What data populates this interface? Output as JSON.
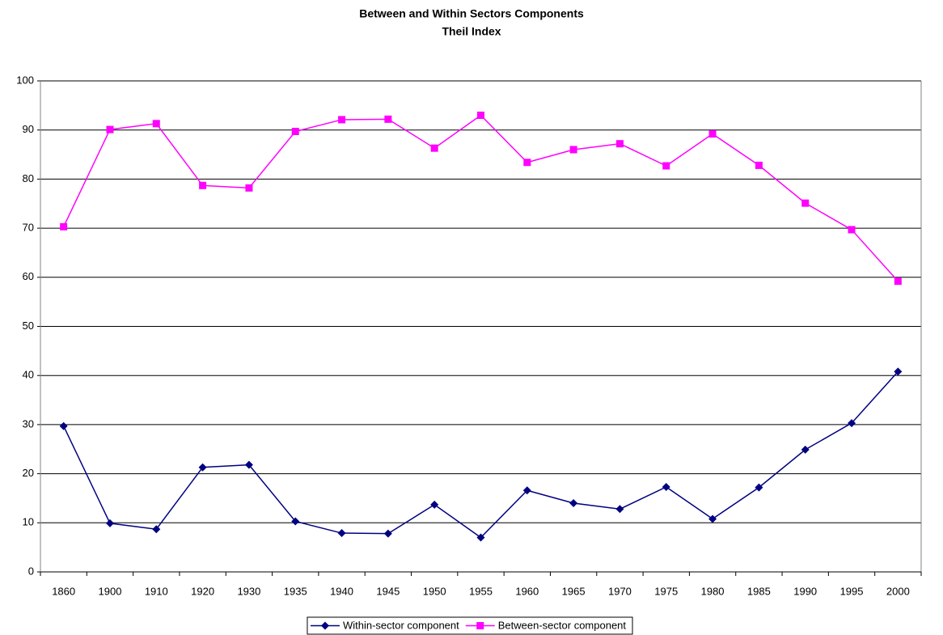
{
  "chart_data": {
    "type": "line",
    "title": "Between and Within Sectors Components",
    "subtitle": "Theil Index",
    "categories": [
      "1860",
      "1900",
      "1910",
      "1920",
      "1930",
      "1935",
      "1940",
      "1945",
      "1950",
      "1955",
      "1960",
      "1965",
      "1970",
      "1975",
      "1980",
      "1985",
      "1990",
      "1995",
      "2000"
    ],
    "series": [
      {
        "name": "Within-sector component",
        "color": "#000080",
        "marker": "diamond",
        "values": [
          29.7,
          9.9,
          8.7,
          21.3,
          21.8,
          10.3,
          7.9,
          7.8,
          13.7,
          7.0,
          16.6,
          14.0,
          12.8,
          17.3,
          10.8,
          17.2,
          24.9,
          30.3,
          40.8
        ]
      },
      {
        "name": "Between-sector component",
        "color": "#ff00ff",
        "marker": "square",
        "values": [
          70.3,
          90.1,
          91.3,
          78.7,
          78.2,
          89.7,
          92.1,
          92.2,
          86.3,
          93.0,
          83.4,
          86.0,
          87.2,
          82.7,
          89.2,
          82.8,
          75.1,
          69.7,
          59.2
        ]
      }
    ],
    "ylim": [
      0,
      100
    ],
    "yticks": [
      0,
      10,
      20,
      30,
      40,
      50,
      60,
      70,
      80,
      90,
      100
    ],
    "grid": true,
    "legend": "bottom"
  }
}
